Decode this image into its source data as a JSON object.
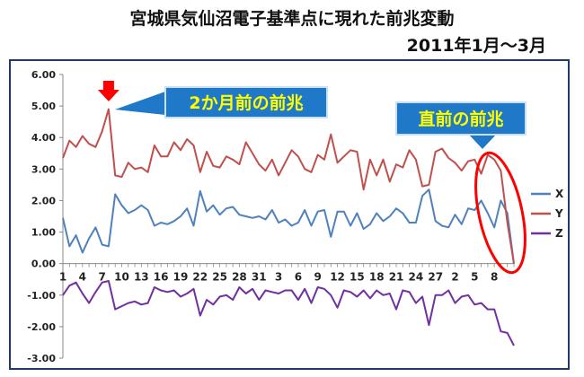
{
  "title": {
    "line1": "宮城県気仙沼電子基準点に現れた前兆変動",
    "line2": "2011年1月～3月"
  },
  "annotations": {
    "callout_left": "2か月前の前兆",
    "callout_right": "直前の前兆"
  },
  "colors": {
    "X": "#4f81bd",
    "Y": "#c0504d",
    "Z": "#7030a0",
    "callout_fill": "#1f78c8",
    "callout_text": "#ffff00",
    "marker_red": "#ff0000",
    "frame": "#1f3a68"
  },
  "chart_data": {
    "type": "line",
    "ylim": [
      -3.0,
      6.0
    ],
    "y_ticks": [
      "6.00",
      "5.00",
      "4.00",
      "3.00",
      "2.00",
      "1.00",
      "0.00",
      "-1.00",
      "-2.00",
      "-3.00"
    ],
    "x_tick_labels": [
      "1",
      "4",
      "7",
      "10",
      "13",
      "16",
      "19",
      "22",
      "25",
      "28",
      "31",
      "3",
      "6",
      "9",
      "12",
      "15",
      "18",
      "21",
      "24",
      "27",
      "2",
      "5",
      "8"
    ],
    "legend_position": "right",
    "grid": false,
    "series": [
      {
        "name": "X",
        "values": [
          1.45,
          0.55,
          0.9,
          0.35,
          0.8,
          1.15,
          0.6,
          0.55,
          2.2,
          1.85,
          1.6,
          1.7,
          1.85,
          1.7,
          1.2,
          1.3,
          1.25,
          1.35,
          1.5,
          1.75,
          1.2,
          2.3,
          1.65,
          1.85,
          1.55,
          1.75,
          1.8,
          1.55,
          1.5,
          1.45,
          1.5,
          1.4,
          1.7,
          1.3,
          1.4,
          1.2,
          1.3,
          1.7,
          1.2,
          1.65,
          1.7,
          0.85,
          1.65,
          1.65,
          1.2,
          1.6,
          1.1,
          1.25,
          1.6,
          1.35,
          1.5,
          1.75,
          1.6,
          1.3,
          1.3,
          2.15,
          2.35,
          1.35,
          1.2,
          1.15,
          1.55,
          1.25,
          1.75,
          1.7,
          2.0,
          1.6,
          1.15,
          2.0,
          1.6,
          0.0
        ],
        "color": "#4f81bd"
      },
      {
        "name": "Y",
        "values": [
          3.35,
          3.9,
          3.7,
          4.05,
          3.8,
          3.7,
          4.2,
          4.9,
          2.8,
          2.75,
          3.2,
          3.0,
          3.05,
          2.9,
          3.75,
          3.4,
          3.4,
          3.85,
          3.6,
          3.95,
          3.75,
          2.9,
          3.55,
          3.1,
          3.05,
          3.4,
          3.3,
          3.15,
          3.85,
          3.5,
          3.15,
          2.95,
          3.3,
          2.8,
          3.2,
          3.6,
          3.4,
          3.0,
          2.9,
          3.45,
          3.3,
          4.1,
          3.2,
          3.4,
          3.6,
          3.55,
          2.35,
          3.3,
          2.8,
          3.3,
          2.6,
          3.15,
          3.05,
          3.6,
          3.3,
          2.45,
          2.5,
          3.55,
          3.65,
          3.35,
          3.2,
          2.95,
          3.25,
          3.3,
          2.85,
          3.45,
          3.3,
          2.95,
          1.3,
          0.0
        ],
        "color": "#c0504d"
      },
      {
        "name": "Z",
        "values": [
          -1.0,
          -0.7,
          -0.6,
          -0.95,
          -1.25,
          -0.9,
          -0.6,
          -0.55,
          -1.45,
          -1.35,
          -1.25,
          -1.2,
          -1.3,
          -1.25,
          -0.75,
          -0.85,
          -0.9,
          -0.85,
          -1.05,
          -0.95,
          -0.8,
          -1.65,
          -1.15,
          -1.3,
          -1.05,
          -1.0,
          -1.15,
          -0.75,
          -0.95,
          -0.8,
          -1.15,
          -0.85,
          -0.9,
          -0.95,
          -0.85,
          -0.85,
          -1.15,
          -0.8,
          -1.25,
          -0.75,
          -0.8,
          -1.0,
          -1.4,
          -0.85,
          -0.9,
          -1.05,
          -0.85,
          -1.1,
          -0.85,
          -1.0,
          -0.95,
          -1.45,
          -0.85,
          -0.9,
          -1.25,
          -1.05,
          -1.95,
          -1.0,
          -1.0,
          -0.85,
          -1.25,
          -1.05,
          -1.0,
          -1.3,
          -1.25,
          -1.45,
          -1.45,
          -2.15,
          -2.2,
          -2.6
        ],
        "color": "#7030a0"
      }
    ]
  }
}
